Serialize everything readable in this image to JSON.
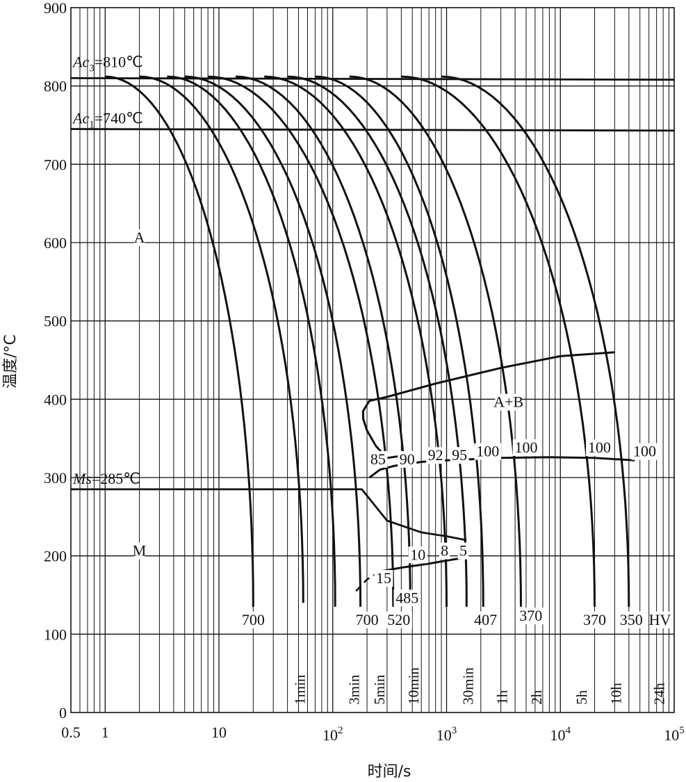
{
  "chart_data": {
    "type": "line",
    "title": "",
    "xlabel": "时间/s",
    "ylabel": "温度/°C",
    "xscale": "log",
    "xlim": [
      0.5,
      100000
    ],
    "ylim": [
      0,
      900
    ],
    "grid": true,
    "y_ticks": [
      "0",
      "100",
      "200",
      "300",
      "400",
      "500",
      "600",
      "700",
      "800",
      "900"
    ],
    "x_ticks": [
      {
        "value": 0.5,
        "label": "0.5"
      },
      {
        "value": 1,
        "label": "1"
      },
      {
        "value": 10,
        "label": "10"
      },
      {
        "value": 100,
        "base": "10",
        "exp": "2"
      },
      {
        "value": 1000,
        "base": "10",
        "exp": "3"
      },
      {
        "value": 10000,
        "base": "10",
        "exp": "4"
      },
      {
        "value": 100000,
        "base": "10",
        "exp": "5"
      }
    ],
    "time_markers": [
      {
        "t": 60,
        "label": "1min"
      },
      {
        "t": 180,
        "label": "3min"
      },
      {
        "t": 300,
        "label": "5min"
      },
      {
        "t": 600,
        "label": "10min"
      },
      {
        "t": 1800,
        "label": "30min"
      },
      {
        "t": 3600,
        "label": "1h"
      },
      {
        "t": 7200,
        "label": "2h"
      },
      {
        "t": 18000,
        "label": "5h"
      },
      {
        "t": 36000,
        "label": "10h"
      },
      {
        "t": 86400,
        "label": "24h"
      }
    ],
    "critical_points": [
      {
        "name": "Ac3",
        "label_main": "Ac",
        "label_sub": "3",
        "label_rest": "=810℃",
        "value": 810
      },
      {
        "name": "Ac1",
        "label_main": "Ac",
        "label_sub": "1",
        "label_rest": "=740℃",
        "value": 740
      },
      {
        "name": "Ms",
        "label_main": "Ms",
        "label_rest": "=285℃",
        "value": 285
      }
    ],
    "region_labels": [
      "A",
      "M",
      "A+B"
    ],
    "ms_line": {
      "x": [
        0.5,
        120,
        180,
        300,
        600,
        1000,
        1500
      ],
      "y": [
        285,
        285,
        285,
        245,
        230,
        225,
        220
      ]
    },
    "bainite_start": {
      "x": [
        520,
        300,
        240,
        200,
        185,
        185,
        210,
        300,
        800,
        3000,
        10000,
        30000
      ],
      "y": [
        330,
        325,
        340,
        360,
        375,
        385,
        398,
        403,
        420,
        440,
        455,
        460
      ]
    },
    "bainite_end": {
      "x": [
        210,
        260,
        350,
        600,
        1000,
        3000,
        8000,
        20000,
        45000
      ],
      "y": [
        300,
        310,
        315,
        320,
        322,
        325,
        326,
        325,
        322
      ]
    },
    "lower_curve_dashed": {
      "x": [
        160,
        200,
        260
      ],
      "y": [
        155,
        170,
        180
      ]
    },
    "lower_curve": {
      "x": [
        260,
        400,
        700,
        1000,
        1500
      ],
      "y": [
        180,
        185,
        190,
        194,
        198
      ]
    },
    "cooling_curves": [
      {
        "start_t": 1.0,
        "end_t": 20,
        "end_T": 135
      },
      {
        "start_t": 2.0,
        "end_t": 55,
        "end_T": 140
      },
      {
        "start_t": 3.5,
        "end_t": 105,
        "end_T": 135
      },
      {
        "start_t": 5.0,
        "end_t": 175,
        "end_T": 135
      },
      {
        "start_t": 8.0,
        "end_t": 340,
        "end_T": 135
      },
      {
        "start_t": 14,
        "end_t": 480,
        "end_T": 140
      },
      {
        "start_t": 25,
        "end_t": 1000,
        "end_T": 135
      },
      {
        "start_t": 40,
        "end_t": 1500,
        "end_T": 135
      },
      {
        "start_t": 70,
        "end_t": 2100,
        "end_T": 135
      },
      {
        "start_t": 140,
        "end_t": 4500,
        "end_T": 135
      },
      {
        "start_t": 400,
        "end_t": 20000,
        "end_T": 135
      },
      {
        "start_t": 900,
        "end_t": 40000,
        "end_T": 135
      }
    ],
    "annotations": [
      {
        "text": "A",
        "x": 2,
        "y": 600
      },
      {
        "text": "M",
        "x": 2,
        "y": 200
      },
      {
        "text": "A+B",
        "x": 3500,
        "y": 390
      },
      {
        "text": "700",
        "x": 20,
        "y": 112
      },
      {
        "text": "700",
        "x": 200,
        "y": 112
      },
      {
        "text": "520",
        "x": 380,
        "y": 112
      },
      {
        "text": "485",
        "x": 450,
        "y": 140
      },
      {
        "text": "407",
        "x": 2200,
        "y": 112
      },
      {
        "text": "370",
        "x": 5500,
        "y": 117
      },
      {
        "text": "370",
        "x": 20000,
        "y": 112
      },
      {
        "text": "350",
        "x": 42000,
        "y": 112
      },
      {
        "text": "HV",
        "x": 75000,
        "y": 112
      },
      {
        "text": "85",
        "x": 250,
        "y": 317
      },
      {
        "text": "90",
        "x": 450,
        "y": 317
      },
      {
        "text": "92",
        "x": 800,
        "y": 322
      },
      {
        "text": "95",
        "x": 1300,
        "y": 322
      },
      {
        "text": "100",
        "x": 2300,
        "y": 327
      },
      {
        "text": "100",
        "x": 5000,
        "y": 332
      },
      {
        "text": "100",
        "x": 22000,
        "y": 332
      },
      {
        "text": "100",
        "x": 55000,
        "y": 327
      },
      {
        "text": "15",
        "x": 280,
        "y": 165
      },
      {
        "text": "10",
        "x": 560,
        "y": 195
      },
      {
        "text": "8",
        "x": 960,
        "y": 200
      },
      {
        "text": "5",
        "x": 1400,
        "y": 200
      }
    ]
  }
}
